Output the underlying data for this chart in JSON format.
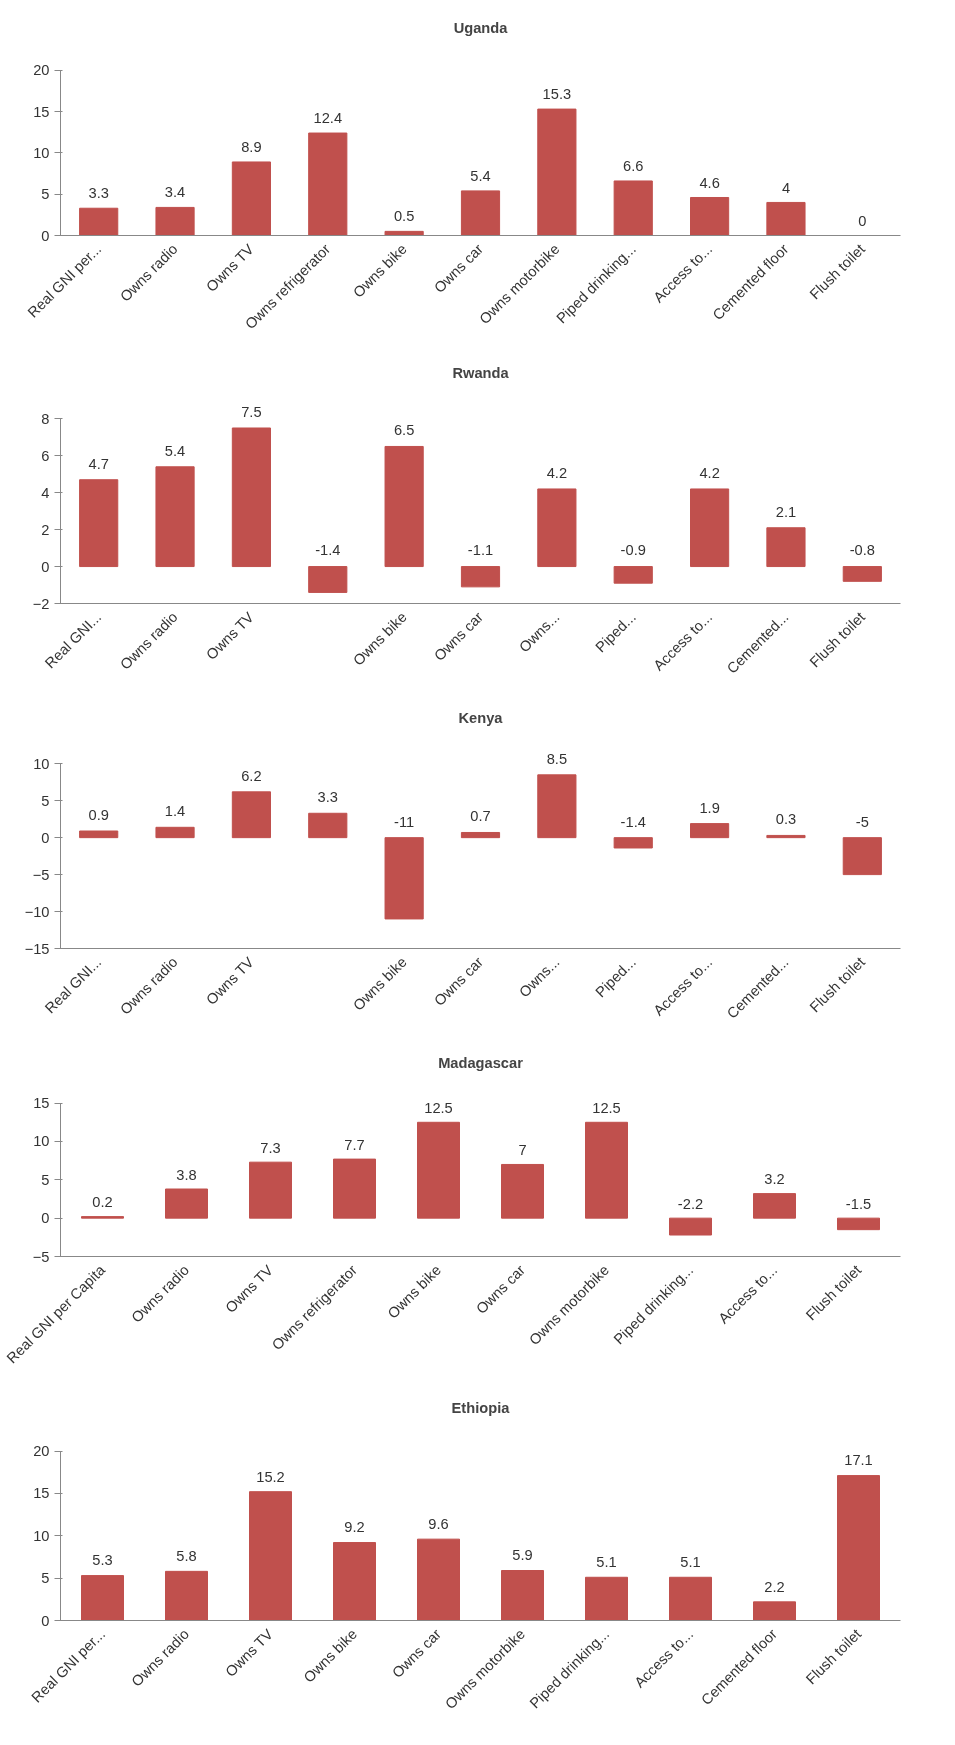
{
  "chart_data": [
    {
      "type": "bar",
      "title": "Uganda",
      "categories": [
        "Real GNI per...",
        "Owns radio",
        "Owns TV",
        "Owns refrigerator",
        "Owns bike",
        "Owns car",
        "Owns motorbike",
        "Piped drinking...",
        "Access to...",
        "Cemented floor",
        "Flush toilet"
      ],
      "values": [
        3.3,
        3.4,
        8.9,
        12.4,
        0.5,
        5.4,
        15.3,
        6.6,
        4.6,
        4,
        0
      ],
      "color": "#c0504d",
      "ylim": [
        0,
        20
      ],
      "yticks": [
        0,
        5,
        10,
        15,
        20
      ],
      "data_labels": true
    },
    {
      "type": "bar",
      "title": "Rwanda",
      "categories": [
        "Real GNI...",
        "Owns radio",
        "Owns TV",
        null,
        "Owns bike",
        "Owns car",
        "Owns...",
        "Piped...",
        "Access to...",
        "Cemented...",
        "Flush toilet"
      ],
      "values": [
        4.7,
        5.4,
        7.5,
        -1.4,
        6.5,
        -1.1,
        4.2,
        -0.9,
        4.2,
        2.1,
        -0.8
      ],
      "color": "#c0504d",
      "ylim": [
        -2,
        8
      ],
      "yticks": [
        -2,
        0,
        2,
        4,
        6,
        8
      ],
      "data_labels": true
    },
    {
      "type": "bar",
      "title": "Kenya",
      "categories": [
        "Real GNI...",
        "Owns radio",
        "Owns TV",
        null,
        "Owns bike",
        "Owns car",
        "Owns...",
        "Piped...",
        "Access to...",
        "Cemented...",
        "Flush toilet"
      ],
      "values": [
        0.9,
        1.4,
        6.2,
        3.3,
        -11,
        0.7,
        8.5,
        -1.4,
        1.9,
        0.3,
        -5
      ],
      "color": "#c0504d",
      "ylim": [
        -15,
        10
      ],
      "yticks": [
        -15,
        -10,
        -5,
        0,
        5,
        10
      ],
      "data_labels": true
    },
    {
      "type": "bar",
      "title": "Madagascar",
      "categories": [
        "Real GNI per Capita",
        "Owns radio",
        "Owns TV",
        "Owns refrigerator",
        "Owns bike",
        "Owns car",
        "Owns motorbike",
        "Piped drinking...",
        "Access to...",
        "Flush toilet"
      ],
      "values": [
        0.2,
        3.8,
        7.3,
        7.7,
        12.5,
        7,
        12.5,
        -2.2,
        3.2,
        -1.5
      ],
      "color": "#c0504d",
      "ylim": [
        -5,
        15
      ],
      "yticks": [
        -5,
        0,
        5,
        10,
        15
      ],
      "data_labels": true
    },
    {
      "type": "bar",
      "title": "Ethiopia",
      "categories": [
        "Real GNI per...",
        "Owns radio",
        "Owns TV",
        "Owns bike",
        "Owns car",
        "Owns motorbike",
        "Piped drinking...",
        "Access to...",
        "Cemented floor",
        "Flush toilet"
      ],
      "values": [
        5.3,
        5.8,
        15.2,
        9.2,
        9.6,
        5.9,
        5.1,
        5.1,
        2.2,
        17.1
      ],
      "color": "#c0504d",
      "ylim": [
        0,
        20
      ],
      "yticks": [
        0,
        5,
        10,
        15,
        20
      ],
      "data_labels": true
    }
  ]
}
